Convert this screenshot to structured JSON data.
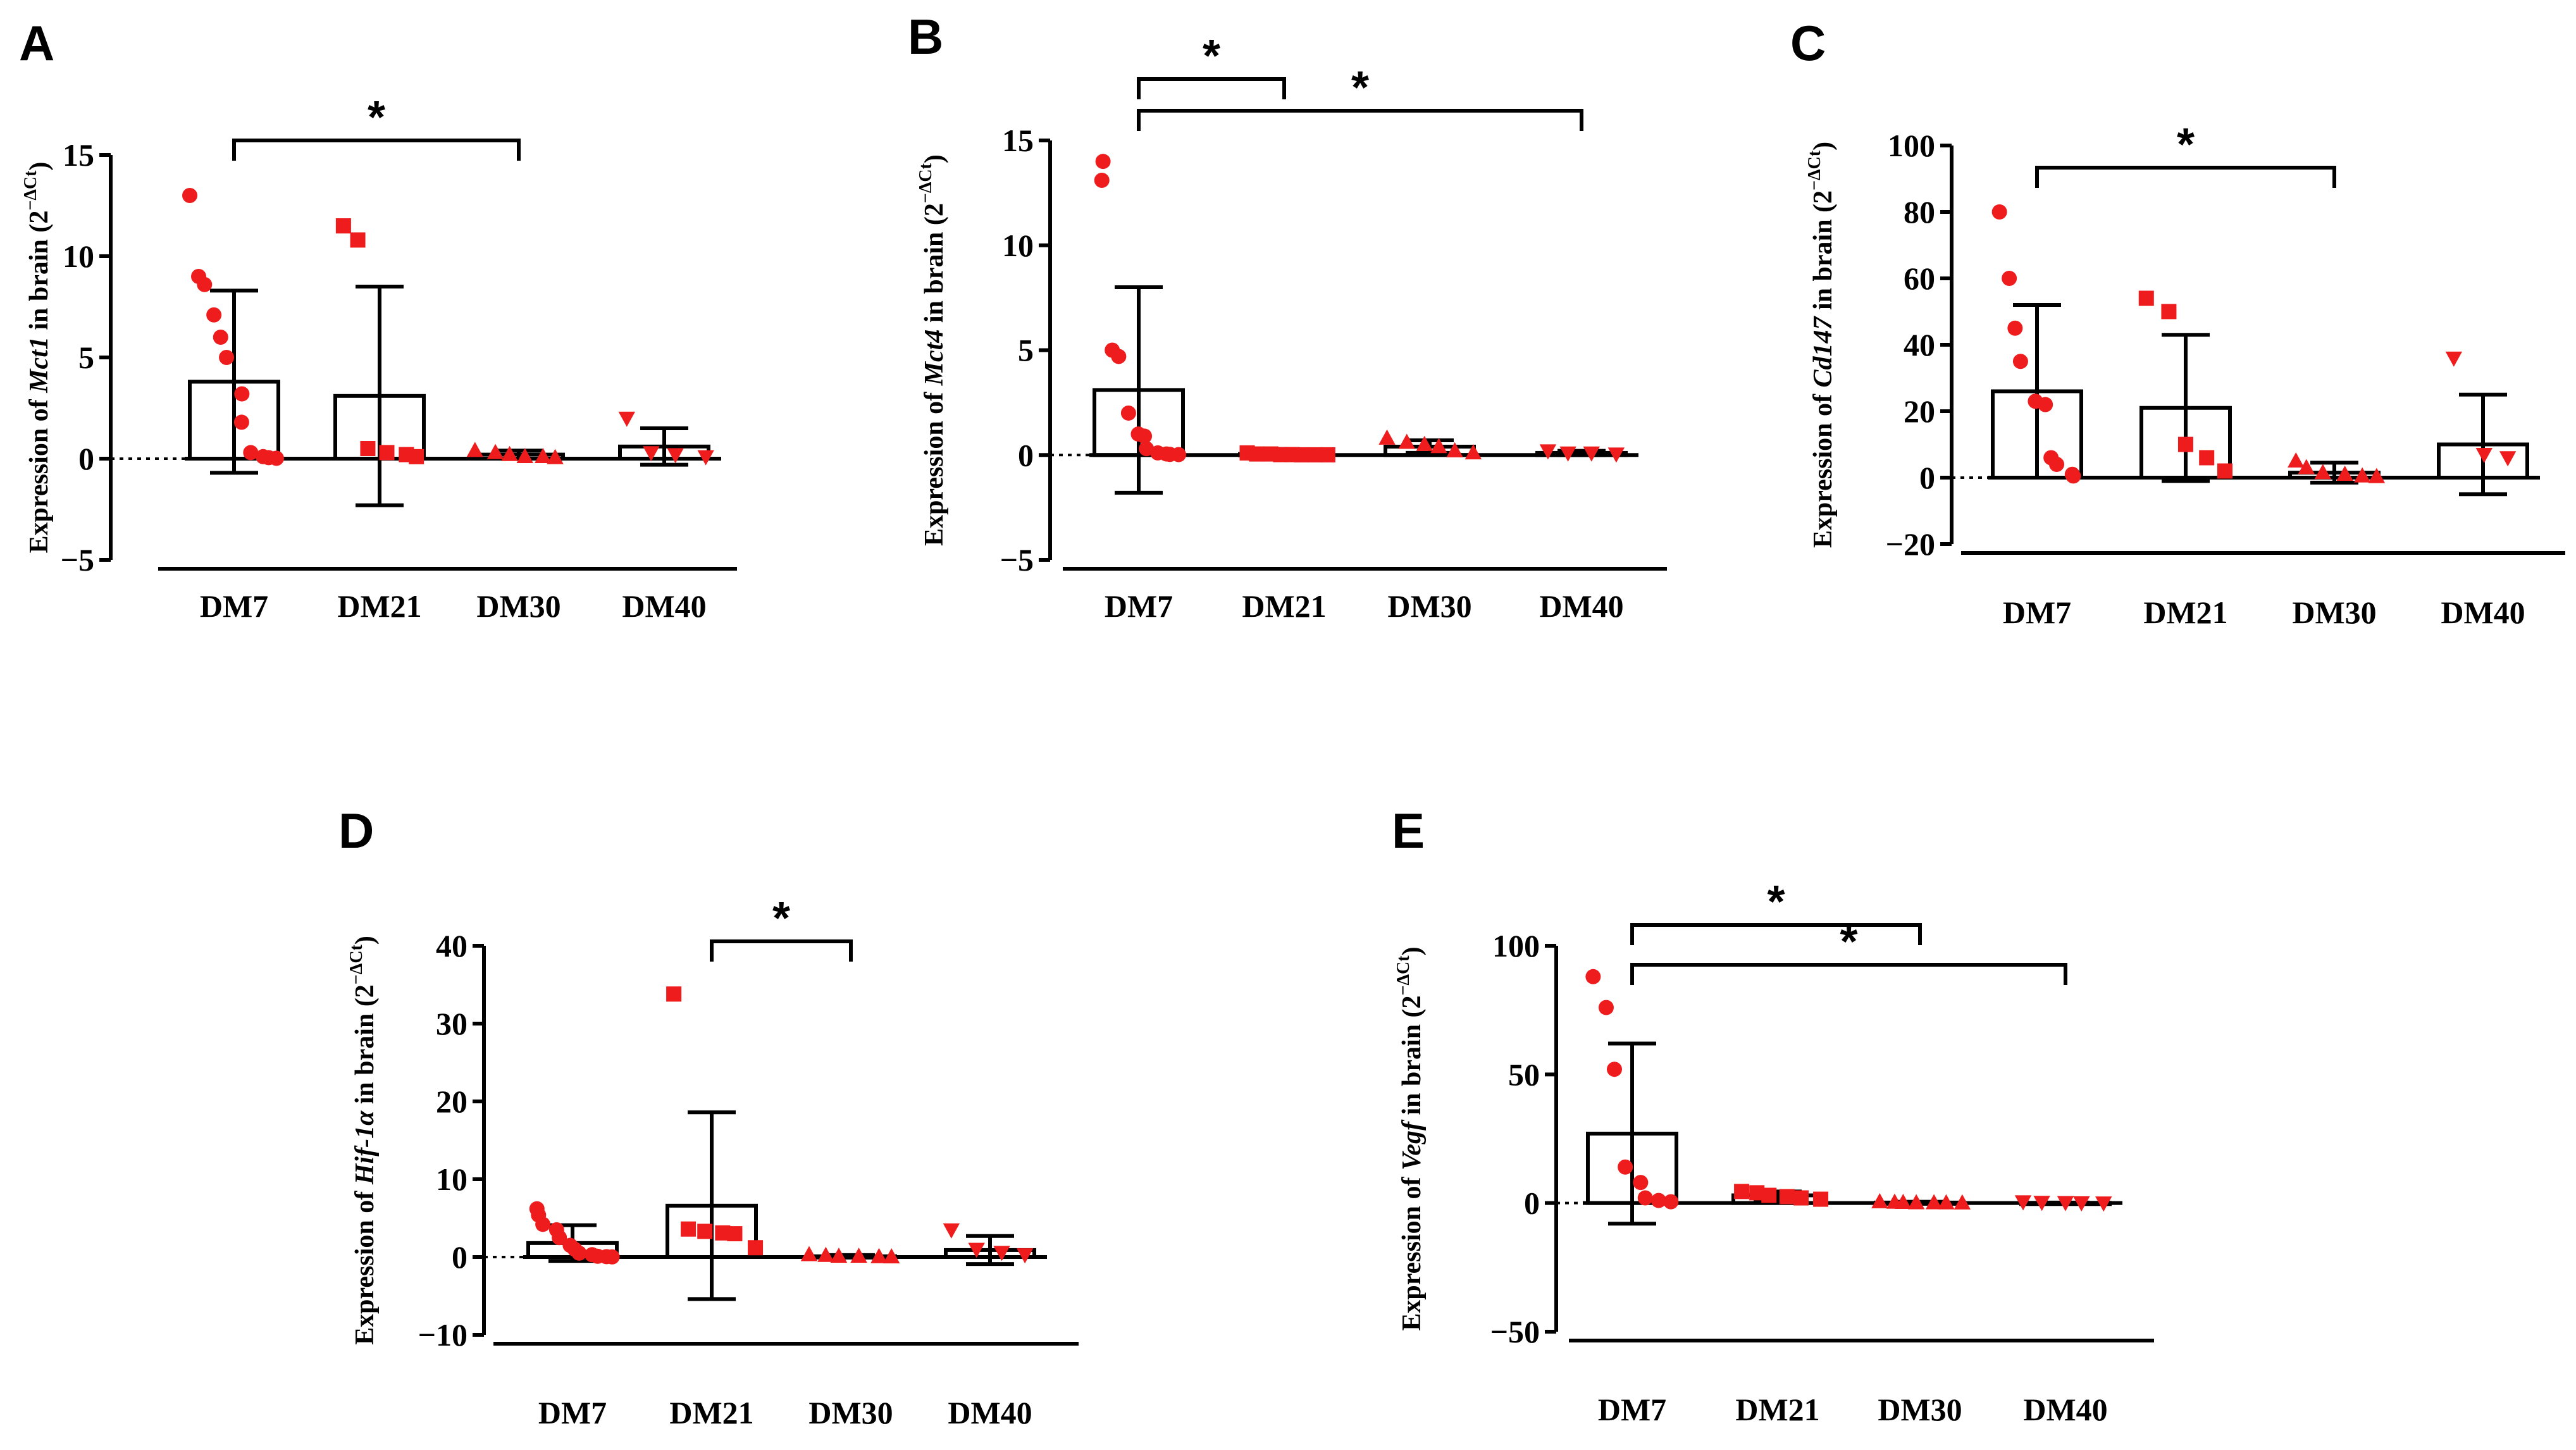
{
  "colors": {
    "points": "#ee1c1c",
    "ink": "#000000"
  },
  "chart_data": [
    {
      "panel": "A",
      "type": "bar",
      "ylabel": {
        "prefix": "Expression of ",
        "gene": "Mct1",
        "suffix": " in brain (2",
        "sup": "−ΔCt",
        "close": ")"
      },
      "categories": [
        "DM7",
        "DM21",
        "DM30",
        "DM40"
      ],
      "ylim": [
        -5,
        15
      ],
      "yticks": [
        -5,
        0,
        5,
        10,
        15
      ],
      "tick_labels": [
        "−5",
        "0",
        "5",
        "10",
        "15"
      ],
      "means": [
        3.8,
        3.1,
        0.2,
        0.6
      ],
      "sd": [
        4.5,
        5.4,
        0.2,
        0.9
      ],
      "markers": [
        "circle",
        "square",
        "triangle",
        "triangle-down"
      ],
      "points": [
        [
          13.0,
          9.0,
          8.6,
          7.1,
          6.0,
          5.0,
          3.2,
          1.8,
          0.3,
          0.1,
          0.05,
          0.02
        ],
        [
          11.5,
          10.8,
          0.5,
          0.3,
          0.2,
          0.1
        ],
        [
          0.4,
          0.3,
          0.2,
          0.1,
          0.1,
          0.05
        ],
        [
          2.0,
          0.3,
          0.2,
          0.1
        ]
      ],
      "significance": [
        {
          "from": 0,
          "to": 2,
          "label": "*"
        }
      ]
    },
    {
      "panel": "B",
      "type": "bar",
      "ylabel": {
        "prefix": "Expression of ",
        "gene": "Mct4",
        "suffix": " in brain (2",
        "sup": "−ΔCt",
        "close": ")"
      },
      "categories": [
        "DM7",
        "DM21",
        "DM30",
        "DM40"
      ],
      "ylim": [
        -5,
        15
      ],
      "yticks": [
        -5,
        0,
        5,
        10,
        15
      ],
      "tick_labels": [
        "−5",
        "0",
        "5",
        "10",
        "15"
      ],
      "means": [
        3.1,
        0.05,
        0.4,
        0.1
      ],
      "sd": [
        4.9,
        0.05,
        0.3,
        0.1
      ],
      "markers": [
        "circle",
        "square",
        "triangle",
        "triangle-down"
      ],
      "points": [
        [
          14.0,
          13.1,
          5.0,
          4.7,
          2.0,
          1.0,
          0.9,
          0.3,
          0.1,
          0.05,
          0.03,
          0.02
        ],
        [
          0.1,
          0.05,
          0.05,
          0.02,
          0.02,
          0.01,
          0.01,
          0.01
        ],
        [
          0.8,
          0.6,
          0.5,
          0.4,
          0.2,
          0.1
        ],
        [
          0.2,
          0.1,
          0.1,
          0.05
        ]
      ],
      "significance": [
        {
          "from": 0,
          "to": 1,
          "label": "*"
        },
        {
          "from": 0,
          "to": 3,
          "label": "*"
        }
      ]
    },
    {
      "panel": "C",
      "type": "bar",
      "ylabel": {
        "prefix": "Expression of ",
        "gene": "Cd147",
        "suffix": " in brain (2",
        "sup": "−ΔCt",
        "close": ")"
      },
      "categories": [
        "DM7",
        "DM21",
        "DM30",
        "DM40"
      ],
      "ylim": [
        -20,
        100
      ],
      "yticks": [
        -20,
        0,
        20,
        40,
        60,
        80,
        100
      ],
      "tick_labels": [
        "−20",
        "0",
        "20",
        "40",
        "60",
        "80",
        "100"
      ],
      "means": [
        26,
        21,
        1.5,
        10
      ],
      "sd": [
        26,
        22,
        3,
        15
      ],
      "markers": [
        "circle",
        "square",
        "triangle",
        "triangle-down"
      ],
      "points": [
        [
          80,
          60,
          45,
          35,
          23,
          22,
          6,
          4,
          1,
          0.5
        ],
        [
          54,
          50,
          10,
          6,
          2
        ],
        [
          5,
          3,
          1.5,
          1,
          0.5,
          0.3
        ],
        [
          36,
          7,
          6
        ]
      ],
      "significance": [
        {
          "from": 0,
          "to": 2,
          "label": "*"
        }
      ]
    },
    {
      "panel": "D",
      "type": "bar",
      "ylabel": {
        "prefix": "Expression of ",
        "gene": "Hif-1α",
        "suffix": " in brain (2",
        "sup": "−ΔCt",
        "close": ")"
      },
      "categories": [
        "DM7",
        "DM21",
        "DM30",
        "DM40"
      ],
      "ylim": [
        -10,
        40
      ],
      "yticks": [
        -10,
        0,
        10,
        20,
        30,
        40
      ],
      "tick_labels": [
        "−10",
        "0",
        "10",
        "20",
        "30",
        "40"
      ],
      "means": [
        1.8,
        6.6,
        0.1,
        0.9
      ],
      "sd": [
        2.3,
        12.0,
        0.15,
        1.8
      ],
      "markers": [
        "circle",
        "square",
        "triangle",
        "triangle-down"
      ],
      "points": [
        [
          6.2,
          5.4,
          4.2,
          3.5,
          2.5,
          1.5,
          1.0,
          0.5,
          0.3,
          0.1,
          0.05,
          0.02
        ],
        [
          33.8,
          3.6,
          3.3,
          3.1,
          3.0,
          1.2
        ],
        [
          0.3,
          0.2,
          0.1,
          0.1,
          0.05,
          0.02
        ],
        [
          3.5,
          1.0,
          0.6,
          0.3
        ]
      ],
      "significance": [
        {
          "from": 1,
          "to": 2,
          "label": "*"
        }
      ]
    },
    {
      "panel": "E",
      "type": "bar",
      "ylabel": {
        "prefix": "Expression of ",
        "gene": "Vegf",
        "suffix": " in brain (2",
        "sup": "−ΔCt",
        "close": ")"
      },
      "categories": [
        "DM7",
        "DM21",
        "DM30",
        "DM40"
      ],
      "ylim": [
        -50,
        100
      ],
      "yticks": [
        -50,
        0,
        50,
        100
      ],
      "tick_labels": [
        "−50",
        "0",
        "50",
        "100"
      ],
      "means": [
        27,
        3,
        0.2,
        0.1
      ],
      "sd": [
        35,
        1.5,
        0.3,
        0.1
      ],
      "markers": [
        "circle",
        "square",
        "triangle",
        "triangle-down"
      ],
      "points": [
        [
          88,
          76,
          52,
          14,
          8,
          2,
          1,
          0.5
        ],
        [
          4.5,
          4.0,
          3.0,
          2.5,
          2.0,
          1.5
        ],
        [
          0.5,
          0.3,
          0.2,
          0.1,
          0.1,
          0.05,
          0.02
        ],
        [
          0.5,
          0.3,
          0.2,
          0.1,
          0.05
        ]
      ],
      "significance": [
        {
          "from": 0,
          "to": 2,
          "label": "*"
        },
        {
          "from": 0,
          "to": 3,
          "label": "*"
        }
      ]
    }
  ]
}
